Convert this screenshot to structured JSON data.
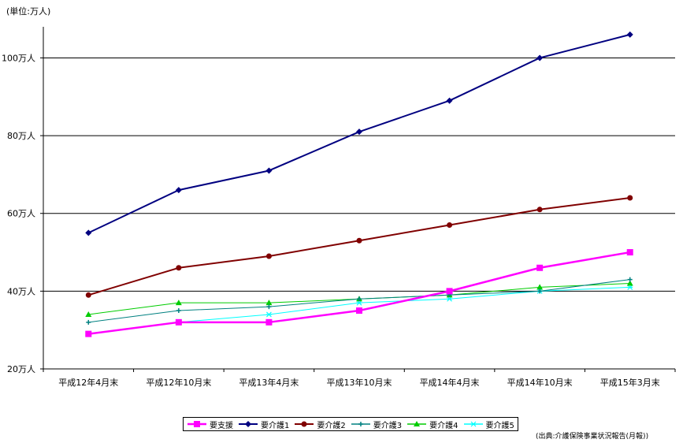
{
  "unit_label": "(単位:万人)",
  "source_note": "(出典:介護保険事業状況報告(月報))",
  "chart_data": {
    "type": "line",
    "categories": [
      "平成12年4月末",
      "平成12年10月末",
      "平成13年4月末",
      "平成13年10月末",
      "平成14年4月末",
      "平成14年10月末",
      "平成15年3月末"
    ],
    "y_ticks": [
      {
        "value": 20,
        "label": "20万人"
      },
      {
        "value": 40,
        "label": "40万人"
      },
      {
        "value": 60,
        "label": "60万人"
      },
      {
        "value": 80,
        "label": "80万人"
      },
      {
        "value": 100,
        "label": "100万人"
      }
    ],
    "ylim": [
      20,
      108
    ],
    "grid": true,
    "legend_position": "bottom",
    "series": [
      {
        "name": "要支援",
        "color": "#ff00ff",
        "marker": "square",
        "width": 2.5,
        "values": [
          29,
          32,
          32,
          35,
          40,
          46,
          50
        ]
      },
      {
        "name": "要介護1",
        "color": "#000080",
        "marker": "diamond",
        "width": 2,
        "values": [
          55,
          66,
          71,
          81,
          89,
          100,
          106
        ]
      },
      {
        "name": "要介護2",
        "color": "#800000",
        "marker": "circle",
        "width": 2,
        "values": [
          39,
          46,
          49,
          53,
          57,
          61,
          64
        ]
      },
      {
        "name": "要介護3",
        "color": "#008080",
        "marker": "plus",
        "width": 1,
        "values": [
          32,
          35,
          36,
          38,
          39,
          40,
          43
        ]
      },
      {
        "name": "要介護4",
        "color": "#00cc00",
        "marker": "triangle",
        "width": 1,
        "values": [
          34,
          37,
          37,
          38,
          39,
          41,
          42
        ]
      },
      {
        "name": "要介護5",
        "color": "#00ffff",
        "marker": "star",
        "width": 1,
        "values": [
          29,
          32,
          34,
          37,
          38,
          40,
          41
        ]
      }
    ]
  }
}
